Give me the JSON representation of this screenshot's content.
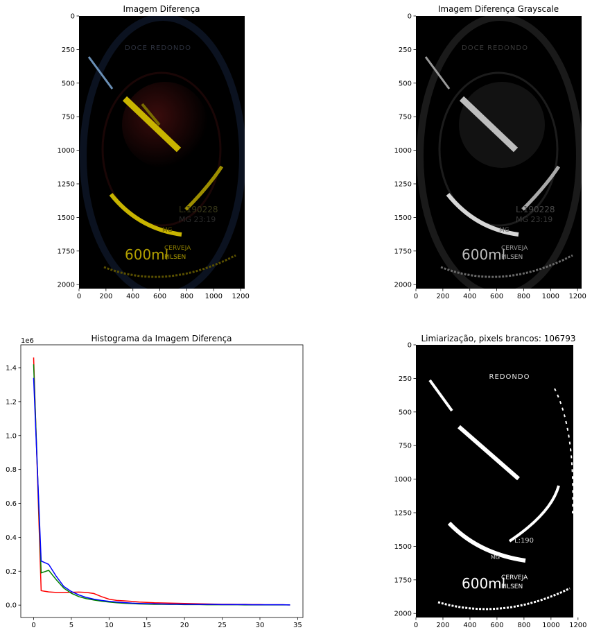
{
  "panels": {
    "top_left": {
      "title": "Imagem Diferença",
      "xticks": [
        "0",
        "200",
        "400",
        "600",
        "800",
        "1000",
        "1200"
      ],
      "yticks": [
        "0",
        "250",
        "500",
        "750",
        "1000",
        "1250",
        "1500",
        "1750",
        "2000"
      ],
      "image_text": {
        "volume": "600ml",
        "brand_line1": "CERVEJA",
        "brand_line2": "PILSEN",
        "top_text": "DOCE REDONDO",
        "lot1": "L:190228",
        "lot2": "MG 23:19",
        "code": "MG"
      }
    },
    "top_right": {
      "title": "Imagem Diferença Grayscale",
      "xticks": [
        "0",
        "200",
        "400",
        "600",
        "800",
        "1000",
        "1200"
      ],
      "yticks": [
        "0",
        "250",
        "500",
        "750",
        "1000",
        "1250",
        "1500",
        "1750",
        "2000"
      ],
      "image_text": {
        "volume": "600ml",
        "brand_line1": "CERVEJA",
        "brand_line2": "PILSEN",
        "top_text": "DOCE REDONDO",
        "lot1": "L:190228",
        "lot2": "MG 23:19",
        "code": "MG"
      }
    },
    "bottom_right": {
      "title": "Limiarização, pixels brancos: 106793",
      "xticks": [
        "0",
        "200",
        "400",
        "600",
        "800",
        "1000",
        "1200"
      ],
      "yticks": [
        "0",
        "250",
        "500",
        "750",
        "1000",
        "1250",
        "1500",
        "1750",
        "2000"
      ],
      "image_text": {
        "volume": "600ml",
        "brand_line1": "CERVEJA",
        "brand_line2": "PILSEN",
        "top_text": "REDONDO",
        "lot1": "L:190",
        "code": "MG"
      }
    }
  },
  "chart_data": {
    "type": "line",
    "title": "Histograma da Imagem Diferença",
    "offset_label": "1e6",
    "xlabel": "",
    "ylabel": "",
    "xlim": [
      -1.7,
      35.7
    ],
    "ylim": [
      -0.073,
      1.535
    ],
    "xticks": [
      0,
      5,
      10,
      15,
      20,
      25,
      30,
      35
    ],
    "yticks": [
      0.0,
      0.2,
      0.4,
      0.6,
      0.8,
      1.0,
      1.2,
      1.4
    ],
    "grid": false,
    "x": [
      0,
      1,
      2,
      3,
      4,
      5,
      6,
      7,
      8,
      9,
      10,
      11,
      12,
      13,
      14,
      15,
      16,
      17,
      18,
      19,
      20,
      21,
      22,
      23,
      24,
      25,
      26,
      27,
      28,
      29,
      30,
      31,
      32,
      33,
      34
    ],
    "series": [
      {
        "color": "#ff0000",
        "values": [
          1.46,
          0.085,
          0.078,
          0.075,
          0.075,
          0.076,
          0.077,
          0.075,
          0.068,
          0.05,
          0.035,
          0.028,
          0.025,
          0.022,
          0.018,
          0.016,
          0.014,
          0.013,
          0.012,
          0.011,
          0.01,
          0.009,
          0.008,
          0.007,
          0.006,
          0.005,
          0.005,
          0.004,
          0.004,
          0.003,
          0.003,
          0.002,
          0.002,
          0.002,
          0.001
        ]
      },
      {
        "color": "#008000",
        "values": [
          1.42,
          0.19,
          0.205,
          0.15,
          0.1,
          0.07,
          0.05,
          0.038,
          0.03,
          0.023,
          0.018,
          0.014,
          0.011,
          0.009,
          0.007,
          0.006,
          0.005,
          0.005,
          0.004,
          0.004,
          0.003,
          0.003,
          0.003,
          0.002,
          0.002,
          0.002,
          0.002,
          0.002,
          0.001,
          0.001,
          0.001,
          0.001,
          0.001,
          0.001,
          0.001
        ]
      },
      {
        "color": "#0000ff",
        "values": [
          1.34,
          0.26,
          0.24,
          0.17,
          0.11,
          0.08,
          0.06,
          0.045,
          0.035,
          0.028,
          0.022,
          0.018,
          0.015,
          0.012,
          0.01,
          0.009,
          0.008,
          0.007,
          0.006,
          0.006,
          0.005,
          0.005,
          0.004,
          0.004,
          0.004,
          0.003,
          0.003,
          0.003,
          0.003,
          0.002,
          0.002,
          0.002,
          0.002,
          0.002,
          0.001
        ]
      }
    ]
  },
  "colors": {
    "yellow_mark": "#c8b400",
    "red_tint": "#3a0a0a",
    "white": "#ffffff",
    "gray": "#cfcfcf"
  }
}
